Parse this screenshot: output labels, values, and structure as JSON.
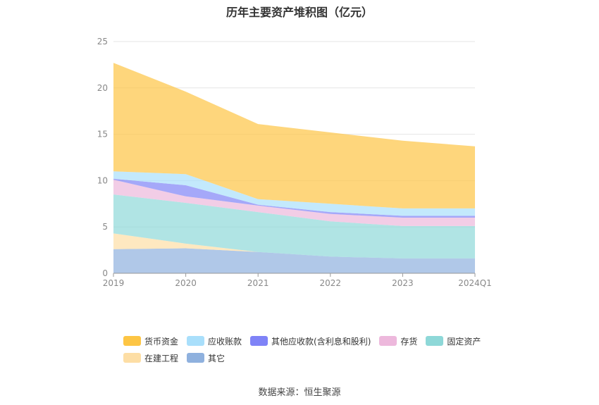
{
  "chart_data": {
    "type": "area",
    "stacked": true,
    "title": "历年主要资产堆积图（亿元）",
    "categories": [
      "2019",
      "2020",
      "2021",
      "2022",
      "2023",
      "2024Q1"
    ],
    "ylim": [
      0,
      25
    ],
    "yticks": [
      0,
      5,
      10,
      15,
      20,
      25
    ],
    "grid": true,
    "legend_position": "bottom",
    "series": [
      {
        "name": "其它",
        "color": "#8FB1DE",
        "values": [
          2.6,
          2.7,
          2.3,
          1.8,
          1.6,
          1.6
        ]
      },
      {
        "name": "在建工程",
        "color": "#FDDEA5",
        "values": [
          1.7,
          0.5,
          0.0,
          0.0,
          0.0,
          0.0
        ]
      },
      {
        "name": "固定资产",
        "color": "#8ED8D8",
        "values": [
          4.2,
          4.4,
          4.3,
          3.8,
          3.5,
          3.5
        ]
      },
      {
        "name": "存货",
        "color": "#EDB8DC",
        "values": [
          1.6,
          0.7,
          0.7,
          0.8,
          0.9,
          0.9
        ]
      },
      {
        "name": "其他应收款(含利息和股利)",
        "color": "#7F83F7",
        "values": [
          0.1,
          1.2,
          0.1,
          0.2,
          0.2,
          0.2
        ]
      },
      {
        "name": "应收账款",
        "color": "#A9DFFB",
        "values": [
          0.8,
          1.2,
          0.6,
          0.9,
          0.8,
          0.8
        ]
      },
      {
        "name": "货币资金",
        "color": "#FDC544",
        "values": [
          11.7,
          8.9,
          8.1,
          7.7,
          7.3,
          6.7
        ]
      }
    ]
  },
  "legend": {
    "row1": [
      {
        "label": "货币资金",
        "color": "#FDC544"
      },
      {
        "label": "应收账款",
        "color": "#A9DFFB"
      },
      {
        "label": "其他应收款(含利息和股利)",
        "color": "#7F83F7"
      },
      {
        "label": "存货",
        "color": "#EDB8DC"
      },
      {
        "label": "固定资产",
        "color": "#8ED8D8"
      }
    ],
    "row2": [
      {
        "label": "在建工程",
        "color": "#FDDEA5"
      },
      {
        "label": "其它",
        "color": "#8FB1DE"
      }
    ]
  },
  "source": "数据来源：恒生聚源"
}
